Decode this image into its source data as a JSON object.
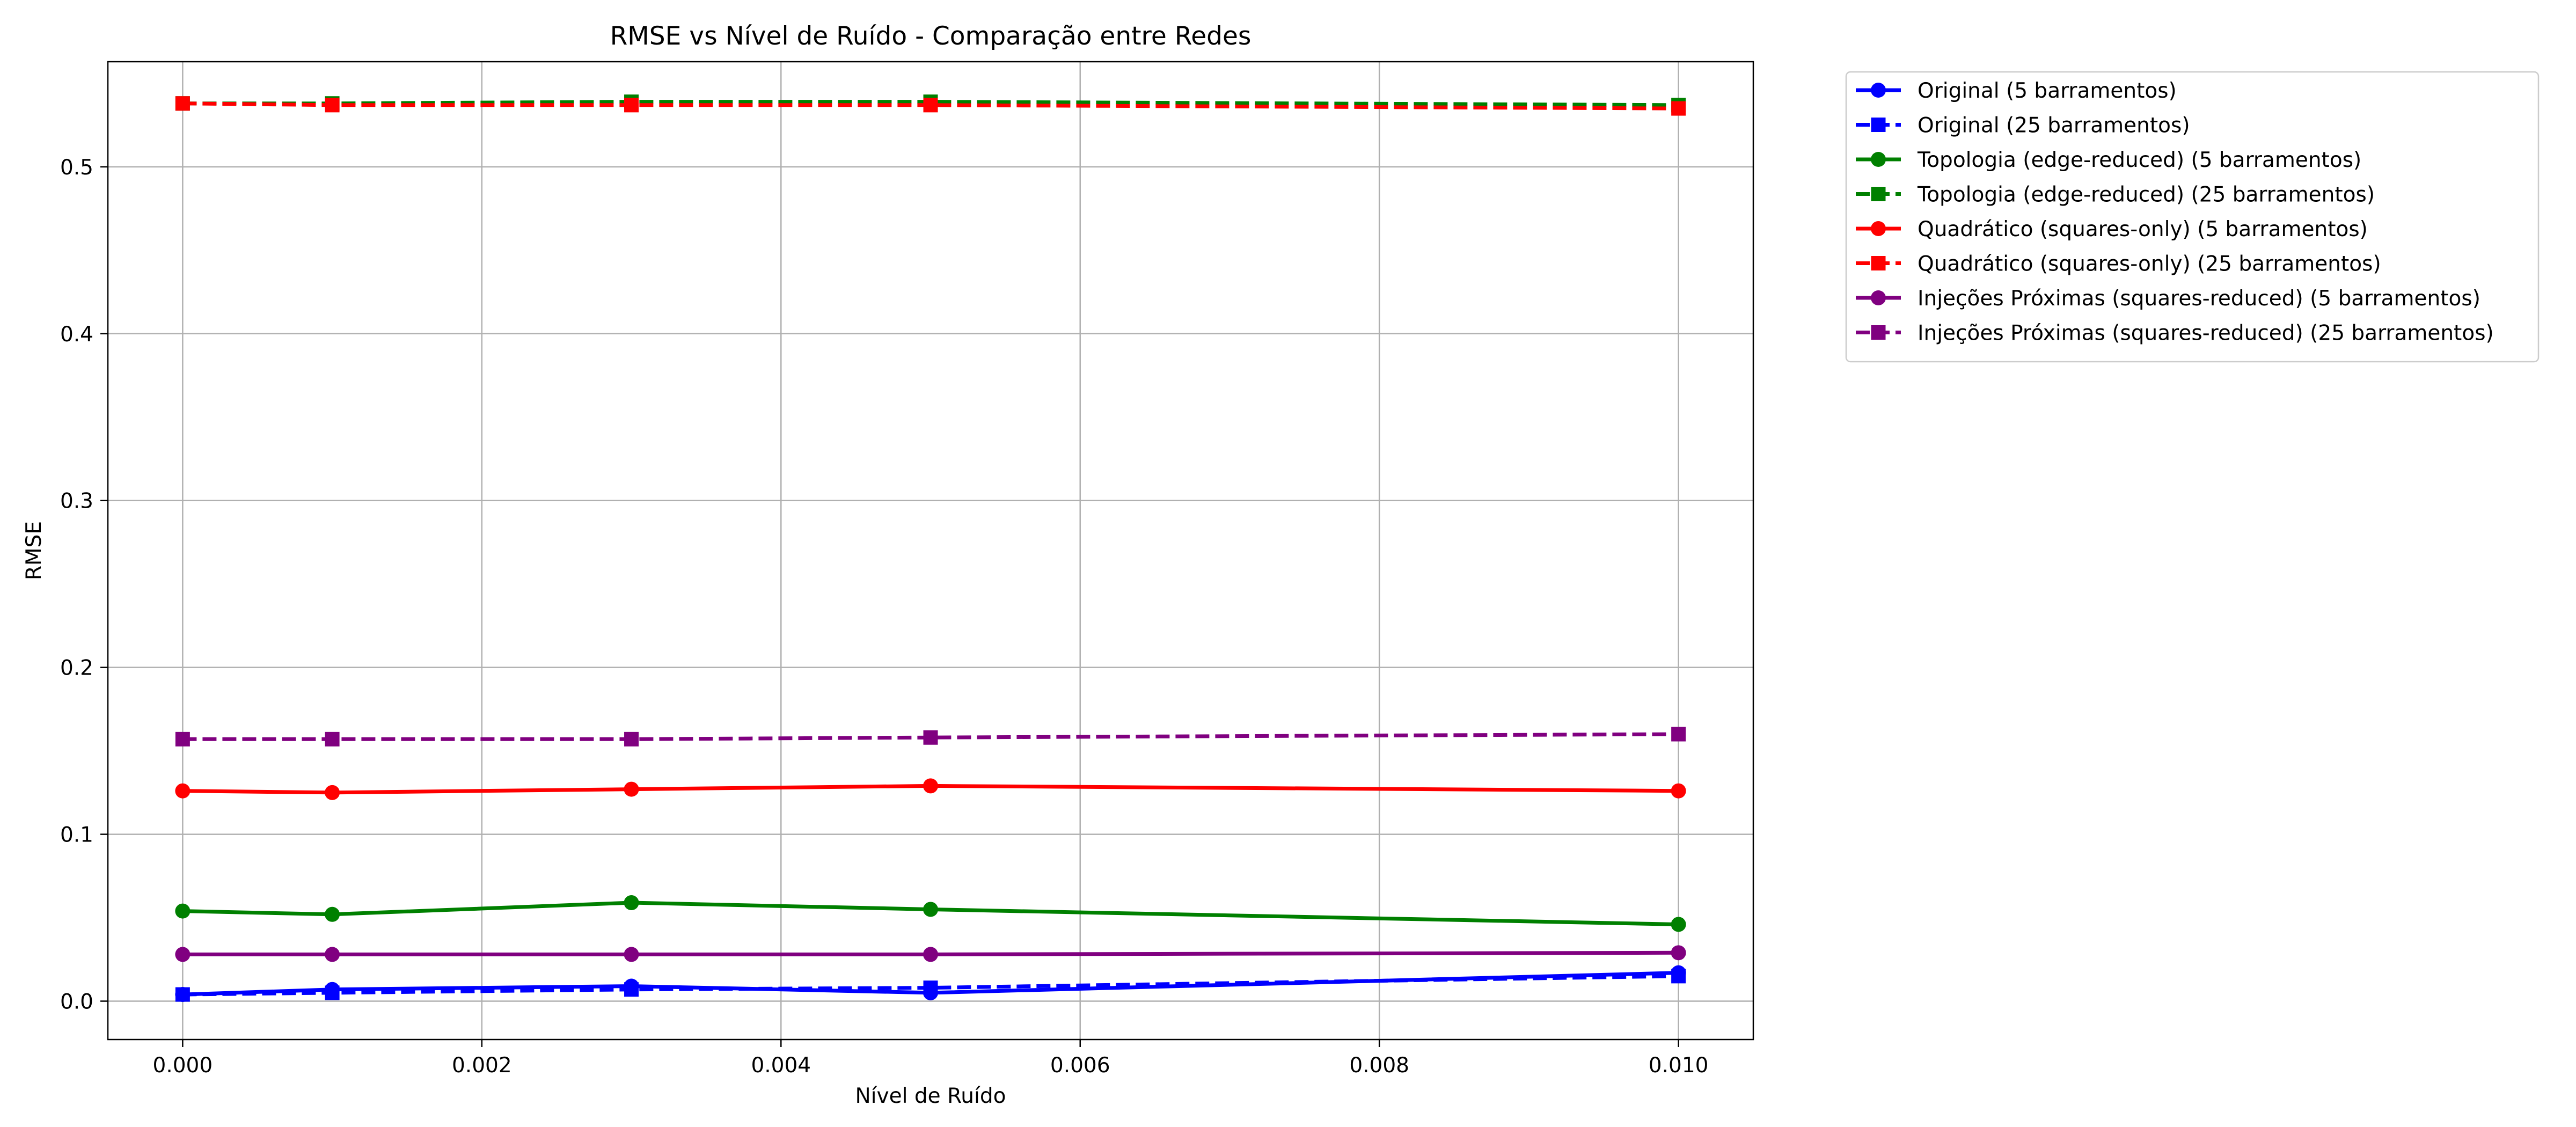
{
  "chart_data": {
    "type": "line",
    "title": "RMSE vs Nível de Ruído - Comparação entre Redes",
    "xlabel": "Nível de Ruído",
    "ylabel": "RMSE",
    "xlim": [
      -0.0005,
      0.0105
    ],
    "ylim": [
      -0.023,
      0.563
    ],
    "xticks": [
      0.0,
      0.002,
      0.004,
      0.006,
      0.008,
      0.01
    ],
    "xtick_labels": [
      "0.000",
      "0.002",
      "0.004",
      "0.006",
      "0.008",
      "0.010"
    ],
    "yticks": [
      0.0,
      0.1,
      0.2,
      0.3,
      0.4,
      0.5
    ],
    "ytick_labels": [
      "0.0",
      "0.1",
      "0.2",
      "0.3",
      "0.4",
      "0.5"
    ],
    "grid": true,
    "legend_position": "outside top-right",
    "x": [
      0.0,
      0.001,
      0.003,
      0.005,
      0.01
    ],
    "series": [
      {
        "name": "Original (5 barramentos)",
        "color": "#0000ff",
        "linestyle": "solid",
        "marker": "circle",
        "values": [
          0.004,
          0.007,
          0.009,
          0.005,
          0.017
        ]
      },
      {
        "name": "Original (25 barramentos)",
        "color": "#0000ff",
        "linestyle": "dashed",
        "marker": "square",
        "values": [
          0.004,
          0.005,
          0.007,
          0.008,
          0.015
        ]
      },
      {
        "name": "Topologia (edge-reduced) (5 barramentos)",
        "color": "#008000",
        "linestyle": "solid",
        "marker": "circle",
        "values": [
          0.054,
          0.052,
          0.059,
          0.055,
          0.046
        ]
      },
      {
        "name": "Topologia (edge-reduced) (25 barramentos)",
        "color": "#008000",
        "linestyle": "dashed",
        "marker": "square",
        "values": [
          0.538,
          0.538,
          0.539,
          0.539,
          0.537
        ]
      },
      {
        "name": "Quadrático (squares-only) (5 barramentos)",
        "color": "#ff0000",
        "linestyle": "solid",
        "marker": "circle",
        "values": [
          0.126,
          0.125,
          0.127,
          0.129,
          0.126
        ]
      },
      {
        "name": "Quadrático (squares-only) (25 barramentos)",
        "color": "#ff0000",
        "linestyle": "dashed",
        "marker": "square",
        "values": [
          0.538,
          0.537,
          0.537,
          0.537,
          0.535
        ]
      },
      {
        "name": "Injeções Próximas (squares-reduced) (5 barramentos)",
        "color": "#800080",
        "linestyle": "solid",
        "marker": "circle",
        "values": [
          0.028,
          0.028,
          0.028,
          0.028,
          0.029
        ]
      },
      {
        "name": "Injeções Próximas (squares-reduced) (25 barramentos)",
        "color": "#800080",
        "linestyle": "dashed",
        "marker": "square",
        "values": [
          0.157,
          0.157,
          0.157,
          0.158,
          0.16
        ]
      }
    ]
  }
}
